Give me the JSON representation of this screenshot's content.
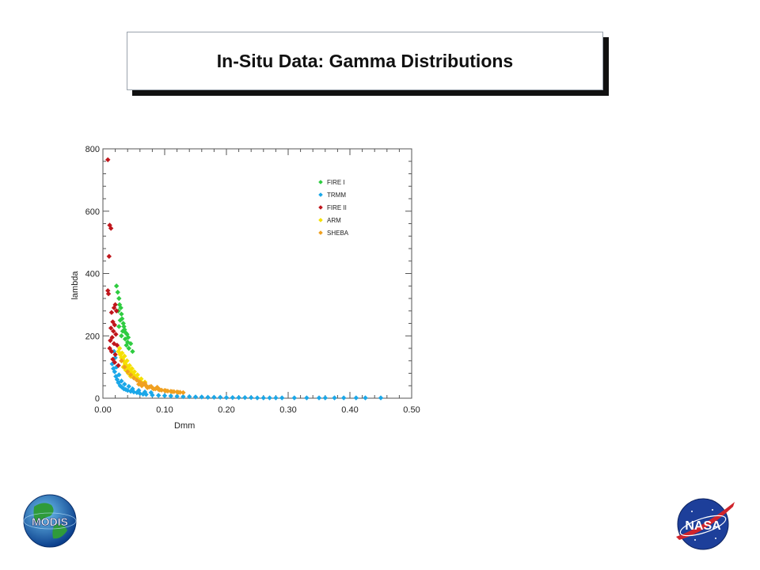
{
  "slide": {
    "title": "In-Situ Data: Gamma Distributions"
  },
  "logos": {
    "left": "MODIS",
    "right": "NASA"
  },
  "colors": {
    "background": "#ffffff",
    "title_shadow": "#111111"
  },
  "chart_data": {
    "type": "scatter",
    "xlabel": "Dmm",
    "ylabel": "lambda",
    "xlim": [
      0.0,
      0.5
    ],
    "ylim": [
      0,
      800
    ],
    "xticks": [
      "0.00",
      "0.10",
      "0.20",
      "0.30",
      "0.40",
      "0.50"
    ],
    "yticks": [
      "0",
      "200",
      "400",
      "600",
      "800"
    ],
    "legend_position": "top-right",
    "series": [
      {
        "name": "FIRE I",
        "color": "#2ecc40",
        "points": [
          [
            0.022,
            360
          ],
          [
            0.024,
            340
          ],
          [
            0.026,
            320
          ],
          [
            0.027,
            300
          ],
          [
            0.029,
            290
          ],
          [
            0.03,
            270
          ],
          [
            0.031,
            255
          ],
          [
            0.033,
            240
          ],
          [
            0.034,
            230
          ],
          [
            0.035,
            220
          ],
          [
            0.037,
            210
          ],
          [
            0.039,
            205
          ],
          [
            0.041,
            195
          ],
          [
            0.028,
            250
          ],
          [
            0.032,
            215
          ],
          [
            0.036,
            190
          ],
          [
            0.04,
            180
          ],
          [
            0.026,
            230
          ],
          [
            0.03,
            200
          ],
          [
            0.045,
            175
          ],
          [
            0.042,
            160
          ],
          [
            0.038,
            170
          ],
          [
            0.025,
            280
          ],
          [
            0.048,
            150
          ]
        ]
      },
      {
        "name": "TRMM",
        "color": "#1aa7e8",
        "points": [
          [
            0.015,
            110
          ],
          [
            0.017,
            95
          ],
          [
            0.019,
            85
          ],
          [
            0.021,
            70
          ],
          [
            0.023,
            60
          ],
          [
            0.025,
            50
          ],
          [
            0.028,
            40
          ],
          [
            0.031,
            35
          ],
          [
            0.034,
            30
          ],
          [
            0.037,
            28
          ],
          [
            0.04,
            25
          ],
          [
            0.045,
            22
          ],
          [
            0.05,
            20
          ],
          [
            0.055,
            18
          ],
          [
            0.06,
            15
          ],
          [
            0.065,
            13
          ],
          [
            0.07,
            12
          ],
          [
            0.08,
            10
          ],
          [
            0.09,
            9
          ],
          [
            0.1,
            8
          ],
          [
            0.11,
            7
          ],
          [
            0.12,
            6
          ],
          [
            0.13,
            5
          ],
          [
            0.14,
            5
          ],
          [
            0.15,
            4
          ],
          [
            0.16,
            4
          ],
          [
            0.17,
            3
          ],
          [
            0.18,
            3
          ],
          [
            0.19,
            3
          ],
          [
            0.2,
            2
          ],
          [
            0.21,
            2
          ],
          [
            0.22,
            2
          ],
          [
            0.23,
            2
          ],
          [
            0.24,
            2
          ],
          [
            0.25,
            1
          ],
          [
            0.26,
            1
          ],
          [
            0.27,
            1
          ],
          [
            0.28,
            1
          ],
          [
            0.29,
            1
          ],
          [
            0.31,
            1
          ],
          [
            0.33,
            1
          ],
          [
            0.35,
            1
          ],
          [
            0.36,
            1
          ],
          [
            0.375,
            1
          ],
          [
            0.39,
            1
          ],
          [
            0.41,
            1
          ],
          [
            0.425,
            1
          ],
          [
            0.45,
            1
          ],
          [
            0.02,
            130
          ],
          [
            0.018,
            150
          ],
          [
            0.022,
            100
          ],
          [
            0.026,
            75
          ],
          [
            0.03,
            55
          ],
          [
            0.035,
            45
          ],
          [
            0.042,
            38
          ],
          [
            0.048,
            30
          ],
          [
            0.058,
            25
          ],
          [
            0.068,
            20
          ],
          [
            0.078,
            18
          ]
        ]
      },
      {
        "name": "FIRE II",
        "color": "#c0161c",
        "points": [
          [
            0.008,
            765
          ],
          [
            0.011,
            555
          ],
          [
            0.013,
            545
          ],
          [
            0.01,
            455
          ],
          [
            0.008,
            345
          ],
          [
            0.009,
            335
          ],
          [
            0.02,
            300
          ],
          [
            0.018,
            290
          ],
          [
            0.022,
            280
          ],
          [
            0.014,
            275
          ],
          [
            0.016,
            245
          ],
          [
            0.019,
            235
          ],
          [
            0.013,
            225
          ],
          [
            0.017,
            215
          ],
          [
            0.021,
            205
          ],
          [
            0.015,
            195
          ],
          [
            0.012,
            185
          ],
          [
            0.018,
            175
          ],
          [
            0.023,
            170
          ],
          [
            0.011,
            160
          ],
          [
            0.014,
            150
          ],
          [
            0.02,
            140
          ],
          [
            0.016,
            125
          ],
          [
            0.019,
            115
          ],
          [
            0.025,
            105
          ]
        ]
      },
      {
        "name": "ARM",
        "color": "#f5e000",
        "points": [
          [
            0.025,
            150
          ],
          [
            0.028,
            140
          ],
          [
            0.03,
            130
          ],
          [
            0.032,
            125
          ],
          [
            0.034,
            118
          ],
          [
            0.036,
            110
          ],
          [
            0.038,
            105
          ],
          [
            0.04,
            100
          ],
          [
            0.042,
            95
          ],
          [
            0.044,
            90
          ],
          [
            0.046,
            85
          ],
          [
            0.048,
            80
          ],
          [
            0.05,
            75
          ],
          [
            0.052,
            70
          ],
          [
            0.055,
            65
          ],
          [
            0.058,
            60
          ],
          [
            0.06,
            55
          ],
          [
            0.063,
            50
          ],
          [
            0.066,
            45
          ],
          [
            0.07,
            40
          ],
          [
            0.027,
            160
          ],
          [
            0.031,
            145
          ],
          [
            0.035,
            135
          ],
          [
            0.039,
            120
          ],
          [
            0.043,
            105
          ],
          [
            0.047,
            95
          ],
          [
            0.051,
            85
          ],
          [
            0.056,
            75
          ],
          [
            0.062,
            62
          ],
          [
            0.068,
            52
          ],
          [
            0.033,
            100
          ],
          [
            0.037,
            90
          ],
          [
            0.041,
            80
          ],
          [
            0.045,
            70
          ]
        ]
      },
      {
        "name": "SHEBA",
        "color": "#f0a020",
        "points": [
          [
            0.03,
            120
          ],
          [
            0.035,
            100
          ],
          [
            0.04,
            85
          ],
          [
            0.045,
            75
          ],
          [
            0.05,
            65
          ],
          [
            0.055,
            58
          ],
          [
            0.06,
            52
          ],
          [
            0.065,
            46
          ],
          [
            0.07,
            40
          ],
          [
            0.075,
            36
          ],
          [
            0.08,
            33
          ],
          [
            0.085,
            30
          ],
          [
            0.09,
            28
          ],
          [
            0.095,
            26
          ],
          [
            0.1,
            25
          ],
          [
            0.105,
            23
          ],
          [
            0.11,
            22
          ],
          [
            0.115,
            21
          ],
          [
            0.12,
            20
          ],
          [
            0.125,
            19
          ],
          [
            0.13,
            18
          ],
          [
            0.058,
            45
          ],
          [
            0.063,
            40
          ],
          [
            0.072,
            34
          ],
          [
            0.082,
            30
          ],
          [
            0.092,
            27
          ],
          [
            0.102,
            24
          ],
          [
            0.112,
            21
          ],
          [
            0.122,
            19
          ],
          [
            0.088,
            35
          ],
          [
            0.078,
            38
          ],
          [
            0.068,
            48
          ]
        ]
      }
    ]
  }
}
